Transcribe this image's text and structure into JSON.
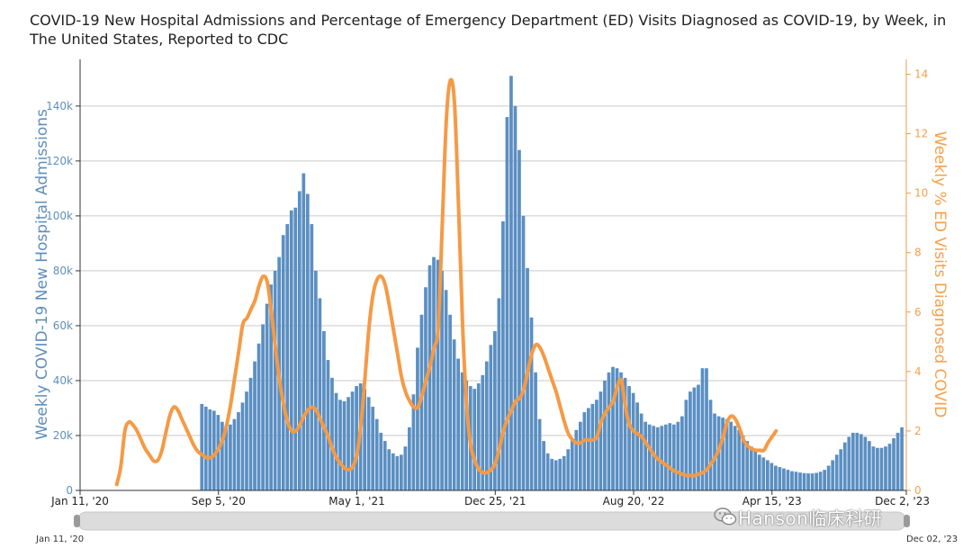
{
  "chart_data": {
    "type": "bar+line",
    "title": "COVID-19 New Hospital Admissions and Percentage of Emergency Department (ED) Visits Diagnosed as COVID-19, by Week, in The United States, Reported to CDC",
    "ylabel": "Weekly COVID-19 New Hospital Admissions",
    "y2label": "Weekly % ED Visits Diagnosed COVID",
    "ylim": [
      0,
      157000
    ],
    "y2lim": [
      0,
      14.5
    ],
    "yticks": [
      "0",
      "20k",
      "40k",
      "60k",
      "80k",
      "100k",
      "120k",
      "140k"
    ],
    "ytick_values": [
      0,
      20000,
      40000,
      60000,
      80000,
      100000,
      120000,
      140000
    ],
    "y2ticks": [
      "0",
      "2",
      "4",
      "6",
      "8",
      "10",
      "12",
      "14"
    ],
    "y2tick_values": [
      0,
      2,
      4,
      6,
      8,
      10,
      12,
      14
    ],
    "xlim_weeks": [
      0,
      203
    ],
    "xticks": [
      "Jan 11, '20",
      "Sep 5, '20",
      "May 1, '21",
      "Dec 25, '21",
      "Aug 20, '22",
      "Apr 15, '23",
      "Dec 2, '23"
    ],
    "xtick_weeks": [
      0,
      34,
      68,
      102,
      136,
      170,
      203
    ],
    "brush_start_label": "Jan 11, '20",
    "brush_end_label": "Dec 02, '23",
    "bar_start_week": 30,
    "series": [
      {
        "name": "Weekly COVID-19 New Hospital Admissions",
        "axis": "left",
        "color": "#5b8fc2",
        "values": [
          31500,
          30500,
          29500,
          29000,
          27500,
          25000,
          23500,
          24000,
          26000,
          28500,
          32000,
          36000,
          41000,
          47000,
          53500,
          60500,
          68000,
          75000,
          80000,
          85000,
          93000,
          97000,
          102000,
          103000,
          109000,
          115500,
          108000,
          97000,
          80000,
          70000,
          58000,
          47500,
          41000,
          35500,
          33000,
          32500,
          34000,
          36000,
          38000,
          39000,
          37000,
          34000,
          30500,
          26000,
          21000,
          18000,
          15000,
          13500,
          12500,
          13000,
          16000,
          23000,
          35000,
          52000,
          64000,
          74000,
          82000,
          85000,
          84000,
          80000,
          73000,
          64000,
          55000,
          48000,
          43000,
          40000,
          38000,
          37000,
          39000,
          42000,
          47000,
          53000,
          58000,
          70000,
          98000,
          136000,
          151000,
          140000,
          124000,
          100000,
          81000,
          63000,
          43000,
          26000,
          18000,
          13500,
          11500,
          11000,
          11500,
          12500,
          15000,
          18500,
          22000,
          25000,
          28500,
          30000,
          31500,
          33000,
          36000,
          40000,
          43000,
          45000,
          44500,
          43000,
          41000,
          38000,
          35500,
          32000,
          28000,
          25000,
          24000,
          23500,
          23000,
          23500,
          24000,
          24500,
          24000,
          25000,
          27000,
          33000,
          36000,
          37500,
          38500,
          44500,
          44500,
          33000,
          28000,
          27000,
          26500,
          26000,
          25000,
          23500,
          22000,
          20000,
          18000,
          16000,
          14500,
          13000,
          12000,
          11000,
          10000,
          9000,
          8500,
          8000,
          7500,
          7000,
          6800,
          6500,
          6300,
          6200,
          6200,
          6400,
          6800,
          7500,
          9000,
          11000,
          13000,
          15000,
          17500,
          19500,
          21000,
          21000,
          20500,
          19500,
          18000,
          16000,
          15500,
          15500,
          16000,
          17000,
          19000,
          21000,
          23000
        ],
        "last_value": 23000
      },
      {
        "name": "Weekly % ED Visits Diagnosed COVID",
        "axis": "right",
        "color": "#f59a45",
        "start_week": 9,
        "values": [
          0.2,
          0.8,
          2.0,
          2.3,
          2.2,
          2.0,
          1.7,
          1.4,
          1.2,
          1.0,
          1.0,
          1.3,
          1.9,
          2.5,
          2.8,
          2.7,
          2.4,
          2.1,
          1.8,
          1.5,
          1.3,
          1.2,
          1.1,
          1.1,
          1.2,
          1.4,
          1.7,
          2.2,
          2.9,
          3.8,
          4.7,
          5.6,
          5.8,
          6.1,
          6.4,
          6.9,
          7.2,
          7.0,
          6.0,
          4.8,
          3.7,
          2.9,
          2.3,
          2.0,
          2.0,
          2.2,
          2.5,
          2.7,
          2.8,
          2.7,
          2.4,
          2.1,
          1.8,
          1.4,
          1.1,
          0.9,
          0.75,
          0.7,
          0.8,
          1.2,
          2.2,
          3.8,
          5.5,
          6.6,
          7.1,
          7.2,
          6.9,
          6.2,
          5.4,
          4.6,
          3.8,
          3.3,
          3.0,
          2.8,
          2.8,
          3.2,
          3.7,
          4.2,
          4.8,
          5.5,
          9.0,
          12.5,
          13.8,
          13.0,
          9.5,
          5.5,
          2.8,
          1.5,
          1.0,
          0.7,
          0.6,
          0.6,
          0.7,
          0.9,
          1.4,
          2.0,
          2.4,
          2.7,
          3.0,
          3.1,
          3.4,
          4.0,
          4.6,
          4.9,
          4.8,
          4.5,
          4.1,
          3.7,
          3.3,
          2.8,
          2.3,
          1.9,
          1.7,
          1.6,
          1.6,
          1.7,
          1.7,
          1.7,
          1.8,
          2.3,
          2.6,
          2.8,
          3.0,
          3.5,
          3.7,
          2.8,
          2.2,
          2.0,
          1.9,
          1.8,
          1.6,
          1.4,
          1.2,
          1.05,
          0.95,
          0.85,
          0.75,
          0.65,
          0.6,
          0.55,
          0.5,
          0.5,
          0.5,
          0.55,
          0.6,
          0.7,
          0.9,
          1.1,
          1.4,
          1.8,
          2.3,
          2.5,
          2.4,
          2.1,
          1.7,
          1.5,
          1.4,
          1.35,
          1.35,
          1.35,
          1.6,
          1.8,
          2.0
        ]
      }
    ]
  },
  "watermark": "Hanson临床科研"
}
